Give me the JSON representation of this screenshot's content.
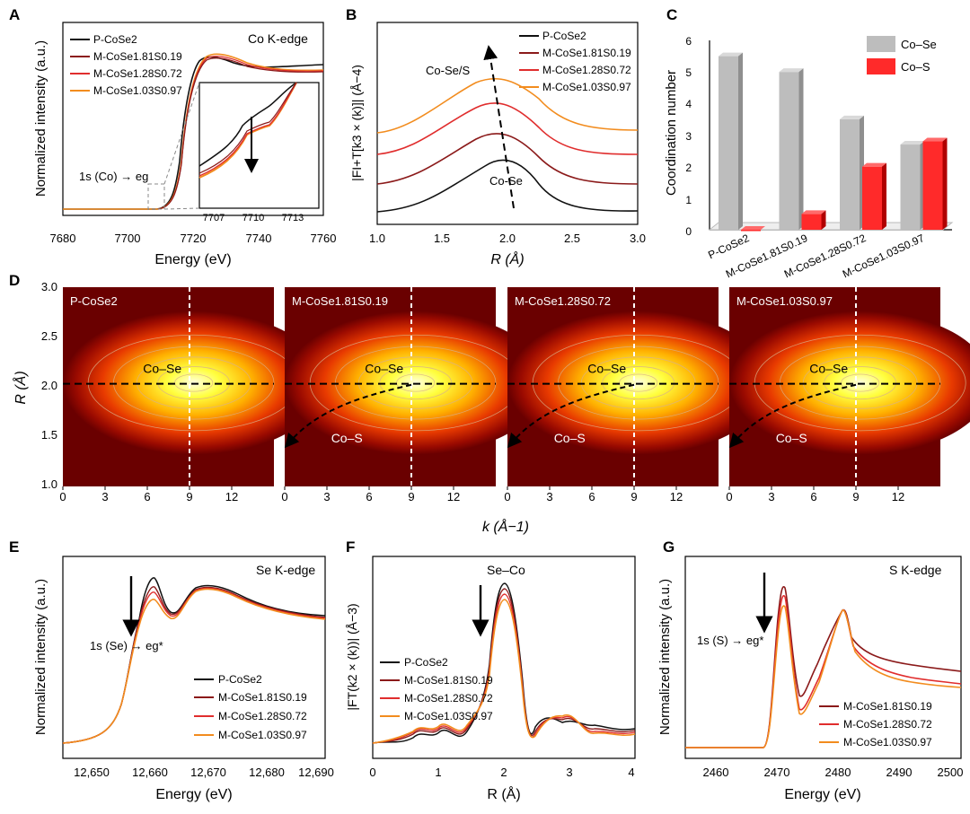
{
  "figure": {
    "panels": [
      {
        "id": "A",
        "letter": "A",
        "type": "line",
        "annotation": "Co K-edge",
        "xlabel": "Energy (eV)",
        "ylabel": "Normalized intensity (a.u.)",
        "xticks": [
          "7680",
          "7700",
          "7720",
          "7740",
          "7760"
        ],
        "legend": [
          "P-CoSe2",
          "M-CoSe1.81S0.19",
          "M-CoSe1.28S0.72",
          "M-CoSe1.03S0.97"
        ],
        "edge_label": "1s (Co) → eg",
        "inset": {
          "xticks": [
            "7707",
            "7710",
            "7713"
          ]
        }
      },
      {
        "id": "B",
        "letter": "B",
        "type": "line",
        "xlabel": "R (Å)",
        "ylabel": "|FI+T[k3 × (k)]| (Å−4)",
        "xticks": [
          "1.0",
          "1.5",
          "2.0",
          "2.5",
          "3.0"
        ],
        "legend": [
          "P-CoSe2",
          "M-CoSe1.81S0.19",
          "M-CoSe1.28S0.72",
          "M-CoSe1.03S0.97"
        ],
        "annotations": [
          "Co-Se/S",
          "Co-Se"
        ]
      },
      {
        "id": "C",
        "letter": "C",
        "type": "bar",
        "ylabel": "Coordination number",
        "yticks": [
          "0",
          "1",
          "2",
          "3",
          "4",
          "5",
          "6"
        ],
        "categories": [
          "P-CoSe2",
          "M-CoSe1.81S0.19",
          "M-CoSe1.28S0.72",
          "M-CoSe1.03S0.97"
        ],
        "series": [
          {
            "name": "Co–Se",
            "values": [
              5.5,
              5.0,
              3.5,
              2.7
            ]
          },
          {
            "name": "Co–S",
            "values": [
              0,
              0.5,
              2.0,
              2.8
            ]
          }
        ]
      },
      {
        "id": "D",
        "letter": "D",
        "type": "heatmap",
        "ylabel": "R (Å)",
        "xlabel": "k (Å−1)",
        "yticks": [
          "3.0",
          "2.5",
          "2.0",
          "1.5",
          "1.0"
        ],
        "xticks": [
          "0",
          "3",
          "6",
          "9",
          "12"
        ],
        "maps": [
          {
            "title": "P-CoSe2",
            "labels": [
              "Co–Se"
            ]
          },
          {
            "title": "M-CoSe1.81S0.19",
            "labels": [
              "Co–Se",
              "Co–S"
            ]
          },
          {
            "title": "M-CoSe1.28S0.72",
            "labels": [
              "Co–Se",
              "Co–S"
            ]
          },
          {
            "title": "M-CoSe1.03S0.97",
            "labels": [
              "Co–Se",
              "Co–S"
            ]
          }
        ]
      },
      {
        "id": "E",
        "letter": "E",
        "type": "line",
        "annotation": "Se K-edge",
        "xlabel": "Energy (eV)",
        "ylabel": "Normalized intensity (a.u.)",
        "xticks": [
          "12,650",
          "12,660",
          "12,670",
          "12,680",
          "12,690"
        ],
        "legend": [
          "P-CoSe2",
          "M-CoSe1.81S0.19",
          "M-CoSe1.28S0.72",
          "M-CoSe1.03S0.97"
        ],
        "edge_label": "1s (Se) → eg*"
      },
      {
        "id": "F",
        "letter": "F",
        "type": "line",
        "annotation": "Se–Co",
        "xlabel": "R (Å)",
        "ylabel": "|FT(k2 × (k))| (Å−3)",
        "xticks": [
          "0",
          "1",
          "2",
          "3",
          "4"
        ],
        "legend": [
          "P-CoSe2",
          "M-CoSe1.81S0.19",
          "M-CoSe1.28S0.72",
          "M-CoSe1.03S0.97"
        ]
      },
      {
        "id": "G",
        "letter": "G",
        "type": "line",
        "annotation": "S K-edge",
        "xlabel": "Energy (eV)",
        "ylabel": "Normalized intensity (a.u.)",
        "xticks": [
          "2460",
          "2470",
          "2480",
          "2490",
          "2500"
        ],
        "legend": [
          "M-CoSe1.81S0.19",
          "M-CoSe1.28S0.72",
          "M-CoSe1.03S0.97"
        ],
        "edge_label": "1s (S) → eg*"
      }
    ]
  },
  "colors": {
    "s1": "#111111",
    "s2": "#8b1a1a",
    "s3": "#e02d2d",
    "s4": "#f28c1e",
    "bar_gray": "#bdbdbd",
    "bar_red": "#ff2a2a"
  },
  "chart_data": [
    {
      "panel": "A",
      "type": "line",
      "xlabel": "Energy (eV)",
      "ylabel": "Normalized intensity (a.u.)",
      "xlim": [
        7680,
        7760
      ],
      "series": [
        {
          "name": "P-CoSe2",
          "edge_eV": 7716,
          "peak_eV": 7723
        },
        {
          "name": "M-CoSe1.81S0.19",
          "edge_eV": 7717,
          "peak_eV": 7725
        },
        {
          "name": "M-CoSe1.28S0.72",
          "edge_eV": 7717,
          "peak_eV": 7725
        },
        {
          "name": "M-CoSe1.03S0.97",
          "edge_eV": 7717,
          "peak_eV": 7725
        }
      ]
    },
    {
      "panel": "B",
      "type": "line",
      "xlabel": "R (Å)",
      "xlim": [
        1.0,
        3.0
      ],
      "series": [
        {
          "name": "P-CoSe2",
          "peak_R": 2.05
        },
        {
          "name": "M-CoSe1.81S0.19",
          "peak_R": 2.0
        },
        {
          "name": "M-CoSe1.28S0.72",
          "peak_R": 1.97
        },
        {
          "name": "M-CoSe1.03S0.97",
          "peak_R": 1.93
        }
      ]
    },
    {
      "panel": "C",
      "type": "bar",
      "ylabel": "Coordination number",
      "ylim": [
        0,
        6
      ],
      "categories": [
        "P-CoSe2",
        "M-CoSe1.81S0.19",
        "M-CoSe1.28S0.72",
        "M-CoSe1.03S0.97"
      ],
      "series": [
        {
          "name": "Co–Se",
          "values": [
            5.5,
            5.0,
            3.5,
            2.7
          ]
        },
        {
          "name": "Co–S",
          "values": [
            0,
            0.5,
            2.0,
            2.8
          ]
        }
      ]
    },
    {
      "panel": "D",
      "type": "heatmap",
      "xlabel": "k (Å−1)",
      "ylabel": "R (Å)",
      "xlim": [
        0,
        15
      ],
      "ylim": [
        1.0,
        3.0
      ],
      "maps": [
        {
          "name": "P-CoSe2",
          "center_k": 9,
          "center_R": 2.03
        },
        {
          "name": "M-CoSe1.81S0.19",
          "center_k": 9,
          "center_R": 2.03
        },
        {
          "name": "M-CoSe1.28S0.72",
          "center_k": 9,
          "center_R": 2.03
        },
        {
          "name": "M-CoSe1.03S0.97",
          "center_k": 9,
          "center_R": 2.03
        }
      ]
    },
    {
      "panel": "E",
      "type": "line",
      "xlabel": "Energy (eV)",
      "xlim": [
        12645,
        12690
      ],
      "series": [
        {
          "name": "P-CoSe2",
          "peak_eV": 12660
        },
        {
          "name": "M-CoSe1.81S0.19",
          "peak_eV": 12660
        },
        {
          "name": "M-CoSe1.28S0.72",
          "peak_eV": 12660
        },
        {
          "name": "M-CoSe1.03S0.97",
          "peak_eV": 12660
        }
      ]
    },
    {
      "panel": "F",
      "type": "line",
      "xlabel": "R (Å)",
      "xlim": [
        0,
        4
      ],
      "series": [
        {
          "name": "P-CoSe2",
          "peak_R": 2.05
        },
        {
          "name": "M-CoSe1.81S0.19",
          "peak_R": 2.05
        },
        {
          "name": "M-CoSe1.28S0.72",
          "peak_R": 2.05
        },
        {
          "name": "M-CoSe1.03S0.97",
          "peak_R": 2.05
        }
      ]
    },
    {
      "panel": "G",
      "type": "line",
      "xlabel": "Energy (eV)",
      "xlim": [
        2455,
        2500
      ],
      "series": [
        {
          "name": "M-CoSe1.81S0.19",
          "peak_eV": 2471.5
        },
        {
          "name": "M-CoSe1.28S0.72",
          "peak_eV": 2471.5
        },
        {
          "name": "M-CoSe1.03S0.97",
          "peak_eV": 2471.5
        }
      ]
    }
  ]
}
